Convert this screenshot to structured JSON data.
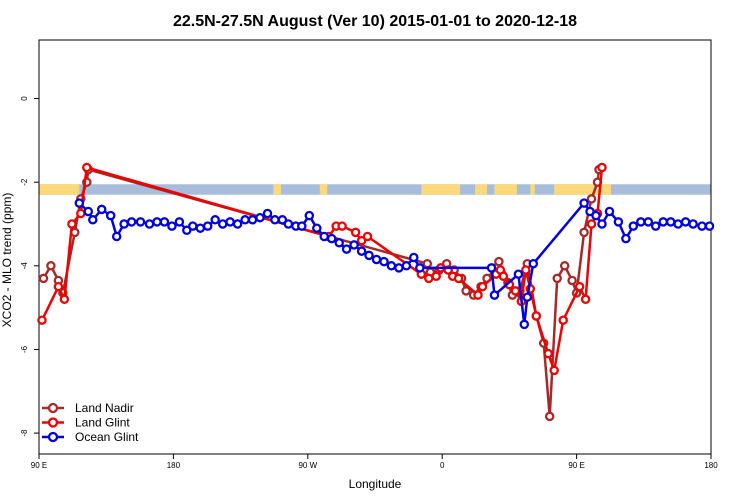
{
  "chart_data": {
    "type": "line",
    "title": "22.5N-27.5N August (Ver 10)   2015-01-01 to 2020-12-18",
    "xlabel": "Longitude",
    "ylabel": "XCO2 - MLO trend (ppm)",
    "x_ticks": [
      {
        "value": 90,
        "label": "90 E"
      },
      {
        "value": 180,
        "label": "180"
      },
      {
        "value": 270,
        "label": "90 W"
      },
      {
        "value": 360,
        "label": "0"
      },
      {
        "value": 450,
        "label": "90 E"
      },
      {
        "value": 540,
        "label": "180"
      }
    ],
    "y_ticks": [
      {
        "value": 0,
        "label": "0"
      },
      {
        "value": -2,
        "label": "-2"
      },
      {
        "value": -4,
        "label": "-4"
      },
      {
        "value": -6,
        "label": "-6"
      },
      {
        "value": -8,
        "label": "-8"
      }
    ],
    "xlim": [
      90,
      540
    ],
    "ylim": [
      -8.5,
      1.4
    ],
    "grid": false,
    "legend_position": "bottom-left",
    "surface_band": {
      "y_top": -2.05,
      "y_bottom": -2.3,
      "ocean_color": "#a6bddb",
      "land_color": "#fdd97a",
      "land_segments": [
        [
          90,
          117
        ],
        [
          247,
          252
        ],
        [
          278,
          283
        ],
        [
          346,
          372
        ],
        [
          382,
          390
        ],
        [
          395,
          410
        ],
        [
          419,
          422
        ],
        [
          435,
          473
        ]
      ]
    },
    "series": [
      {
        "name": "Land Nadir",
        "color": "#a52a2a",
        "values": [
          [
            93,
            -4.3
          ],
          [
            98,
            -4.0
          ],
          [
            103,
            -4.35
          ],
          [
            106,
            -4.65
          ],
          [
            114,
            -3.2
          ],
          [
            118,
            -2.4
          ],
          [
            122,
            -2.0
          ],
          [
            123,
            -1.7
          ],
          [
            350,
            -3.95
          ],
          [
            352,
            -4.15
          ],
          [
            358,
            -4.1
          ],
          [
            363,
            -3.95
          ],
          [
            368,
            -4.1
          ],
          [
            373,
            -4.3
          ],
          [
            376,
            -4.6
          ],
          [
            381,
            -4.7
          ],
          [
            386,
            -4.5
          ],
          [
            390,
            -4.3
          ],
          [
            396,
            -4.05
          ],
          [
            398,
            -3.9
          ],
          [
            400,
            -4.2
          ],
          [
            404,
            -4.4
          ],
          [
            407,
            -4.7
          ],
          [
            412,
            -4.6
          ],
          [
            417,
            -3.95
          ],
          [
            423,
            -5.2
          ],
          [
            428,
            -5.85
          ],
          [
            432,
            -7.6
          ],
          [
            437,
            -4.3
          ],
          [
            442,
            -4.0
          ],
          [
            447,
            -4.35
          ],
          [
            450,
            -4.65
          ],
          [
            455,
            -3.2
          ],
          [
            460,
            -2.4
          ],
          [
            464,
            -2.0
          ],
          [
            465,
            -1.7
          ]
        ]
      },
      {
        "name": "Land Glint",
        "color": "#ee0000",
        "values": [
          [
            92,
            -5.3
          ],
          [
            103,
            -4.5
          ],
          [
            107,
            -4.8
          ],
          [
            112,
            -3.0
          ],
          [
            118,
            -2.75
          ],
          [
            122,
            -1.65
          ],
          [
            284,
            -3.3
          ],
          [
            289,
            -3.05
          ],
          [
            293,
            -3.05
          ],
          [
            302,
            -3.2
          ],
          [
            306,
            -3.4
          ],
          [
            310,
            -3.3
          ],
          [
            346,
            -4.2
          ],
          [
            351,
            -4.3
          ],
          [
            356,
            -4.25
          ],
          [
            359,
            -4.05
          ],
          [
            364,
            -4.1
          ],
          [
            367,
            -4.25
          ],
          [
            371,
            -4.3
          ],
          [
            384,
            -4.7
          ],
          [
            387,
            -4.5
          ],
          [
            396,
            -4.2
          ],
          [
            399,
            -4.1
          ],
          [
            401,
            -4.25
          ],
          [
            405,
            -4.45
          ],
          [
            409,
            -4.6
          ],
          [
            413,
            -4.85
          ],
          [
            416,
            -4.1
          ],
          [
            419,
            -4.55
          ],
          [
            423,
            -5.2
          ],
          [
            431,
            -6.1
          ],
          [
            435,
            -6.5
          ],
          [
            441,
            -5.3
          ],
          [
            452,
            -4.5
          ],
          [
            456,
            -4.8
          ],
          [
            460,
            -3.0
          ],
          [
            464,
            -2.75
          ],
          [
            467,
            -1.65
          ]
        ]
      },
      {
        "name": "Ocean Glint",
        "color": "#0000dd",
        "values": [
          [
            117,
            -2.5
          ],
          [
            123,
            -2.7
          ],
          [
            126,
            -2.9
          ],
          [
            132,
            -2.65
          ],
          [
            138,
            -2.8
          ],
          [
            142,
            -3.3
          ],
          [
            147,
            -3.0
          ],
          [
            152,
            -2.95
          ],
          [
            158,
            -2.95
          ],
          [
            164,
            -3.0
          ],
          [
            169,
            -2.95
          ],
          [
            174,
            -2.95
          ],
          [
            179,
            -3.05
          ],
          [
            184,
            -2.95
          ],
          [
            189,
            -3.15
          ],
          [
            193,
            -3.05
          ],
          [
            198,
            -3.1
          ],
          [
            203,
            -3.05
          ],
          [
            208,
            -2.9
          ],
          [
            213,
            -3.0
          ],
          [
            218,
            -2.95
          ],
          [
            223,
            -3.0
          ],
          [
            228,
            -2.9
          ],
          [
            233,
            -2.9
          ],
          [
            238,
            -2.85
          ],
          [
            243,
            -2.75
          ],
          [
            248,
            -2.9
          ],
          [
            253,
            -2.9
          ],
          [
            257,
            -3.0
          ],
          [
            262,
            -3.05
          ],
          [
            266,
            -3.05
          ],
          [
            271,
            -2.8
          ],
          [
            276,
            -3.1
          ],
          [
            281,
            -3.3
          ],
          [
            286,
            -3.35
          ],
          [
            291,
            -3.45
          ],
          [
            296,
            -3.6
          ],
          [
            301,
            -3.5
          ],
          [
            306,
            -3.65
          ],
          [
            311,
            -3.75
          ],
          [
            316,
            -3.85
          ],
          [
            321,
            -3.9
          ],
          [
            326,
            -4.0
          ],
          [
            331,
            -4.05
          ],
          [
            336,
            -4.0
          ],
          [
            341,
            -3.8
          ],
          [
            345,
            -4.05
          ],
          [
            393,
            -4.05
          ],
          [
            395,
            -4.7
          ],
          [
            411,
            -4.2
          ],
          [
            415,
            -5.4
          ],
          [
            417,
            -4.75
          ],
          [
            421,
            -3.95
          ],
          [
            455,
            -2.5
          ],
          [
            459,
            -2.7
          ],
          [
            463,
            -2.8
          ],
          [
            467,
            -3.0
          ],
          [
            472,
            -2.7
          ],
          [
            478,
            -2.95
          ],
          [
            483,
            -3.35
          ],
          [
            488,
            -3.05
          ],
          [
            493,
            -2.95
          ],
          [
            498,
            -2.95
          ],
          [
            503,
            -3.05
          ],
          [
            508,
            -2.95
          ],
          [
            513,
            -2.95
          ],
          [
            518,
            -3.0
          ],
          [
            523,
            -2.95
          ],
          [
            528,
            -3.0
          ],
          [
            534,
            -3.05
          ],
          [
            539,
            -3.05
          ]
        ]
      }
    ]
  }
}
